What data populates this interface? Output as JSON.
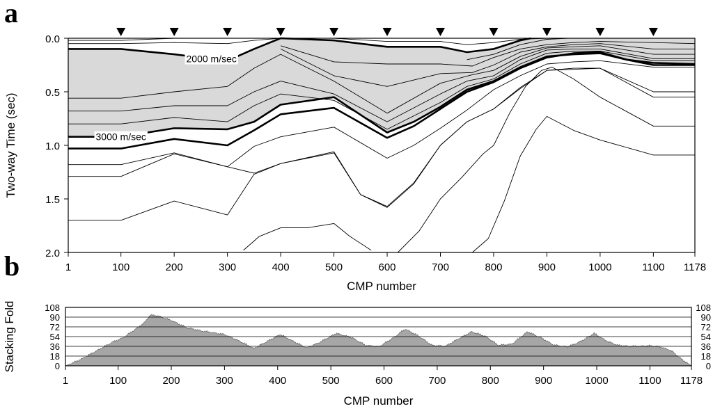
{
  "panels": [
    {
      "id": "a",
      "label": "a"
    },
    {
      "id": "b",
      "label": "b"
    }
  ],
  "chart_data": [
    {
      "panel": "a",
      "type": "line",
      "ylabel": "Two-way  Time (sec)",
      "xlabel": "CMP number",
      "xlim": [
        1,
        1178
      ],
      "ylim": [
        0.0,
        2.0
      ],
      "y_inverted": true,
      "xticks": [
        1,
        100,
        200,
        300,
        400,
        500,
        600,
        700,
        800,
        900,
        1000,
        1100,
        1178
      ],
      "yticks": [
        0.0,
        0.5,
        1.0,
        1.5,
        2.0
      ],
      "ytick_labels": [
        "0.0",
        "0.5",
        "1.0",
        "1.5",
        "2.0"
      ],
      "markers": {
        "shape": "inverted-triangle",
        "x": [
          100,
          200,
          300,
          400,
          500,
          600,
          700,
          800,
          900,
          1000,
          1100
        ]
      },
      "shaded_region": {
        "between": [
          "2000 m/sec",
          "3000 m/sec"
        ],
        "color": "#d9d9d9"
      },
      "contours": [
        {
          "label": "",
          "bold": false,
          "x": [
            1,
            100,
            200,
            300,
            400
          ],
          "y": [
            0.02,
            0.02,
            0.0,
            0.0,
            0.0
          ]
        },
        {
          "label": "",
          "bold": false,
          "x": [
            1,
            100,
            200,
            300,
            350,
            400
          ],
          "y": [
            0.05,
            0.05,
            0.04,
            0.05,
            0.02,
            0.0
          ]
        },
        {
          "label": "",
          "bold": false,
          "x": [
            500,
            600,
            700,
            750,
            800,
            850,
            900,
            950
          ],
          "y": [
            0.0,
            0.03,
            0.03,
            0.06,
            0.04,
            0.01,
            0.0,
            0.0
          ]
        },
        {
          "label": "2000 m/sec",
          "bold": true,
          "x": [
            1,
            100,
            200,
            300,
            350,
            400,
            500,
            600,
            700,
            750,
            800,
            850,
            870
          ],
          "y": [
            0.1,
            0.1,
            0.15,
            0.21,
            0.1,
            0.0,
            0.02,
            0.08,
            0.08,
            0.13,
            0.1,
            0.02,
            0.0
          ]
        },
        {
          "label": "",
          "bold": false,
          "x": [
            750,
            800,
            850,
            900,
            940
          ],
          "y": [
            0.2,
            0.15,
            0.06,
            0.01,
            0.0
          ]
        },
        {
          "label": "",
          "bold": false,
          "x": [
            400,
            500,
            600,
            700,
            760,
            800,
            850,
            900,
            950,
            1000,
            1100,
            1178
          ],
          "y": [
            0.07,
            0.22,
            0.24,
            0.24,
            0.26,
            0.18,
            0.1,
            0.06,
            0.04,
            0.03,
            0.04,
            0.05
          ]
        },
        {
          "label": "",
          "bold": false,
          "x": [
            400,
            500,
            600,
            700,
            760,
            800,
            850,
            900,
            950,
            1000,
            1100,
            1178
          ],
          "y": [
            0.1,
            0.35,
            0.45,
            0.33,
            0.32,
            0.25,
            0.13,
            0.08,
            0.06,
            0.05,
            0.1,
            0.1
          ]
        },
        {
          "label": "",
          "bold": false,
          "x": [
            1,
            100,
            200,
            300,
            350,
            400,
            500,
            600,
            700,
            760,
            800,
            850,
            900,
            950,
            1000,
            1100,
            1178
          ],
          "y": [
            0.56,
            0.56,
            0.5,
            0.45,
            0.28,
            0.15,
            0.4,
            0.7,
            0.42,
            0.34,
            0.3,
            0.17,
            0.09,
            0.08,
            0.07,
            0.15,
            0.15
          ]
        },
        {
          "label": "",
          "bold": false,
          "x": [
            1,
            100,
            200,
            300,
            350,
            400,
            500,
            600,
            700,
            750,
            800,
            850,
            900,
            950,
            1000,
            1100,
            1178
          ],
          "y": [
            0.68,
            0.68,
            0.63,
            0.63,
            0.5,
            0.4,
            0.52,
            0.78,
            0.52,
            0.4,
            0.35,
            0.2,
            0.11,
            0.1,
            0.1,
            0.19,
            0.19
          ]
        },
        {
          "label": "",
          "bold": false,
          "x": [
            1,
            100,
            200,
            300,
            350,
            400,
            500,
            600,
            700,
            750,
            800,
            850,
            900,
            950,
            1000,
            1100,
            1178
          ],
          "y": [
            0.8,
            0.8,
            0.74,
            0.78,
            0.63,
            0.52,
            0.58,
            0.85,
            0.6,
            0.45,
            0.38,
            0.24,
            0.14,
            0.12,
            0.12,
            0.21,
            0.21
          ]
        },
        {
          "label": "3000 m/sec",
          "bold": true,
          "x": [
            1,
            100,
            200,
            300,
            350,
            400,
            500,
            600,
            650,
            700,
            750,
            800,
            850,
            900,
            950,
            1000,
            1050,
            1100,
            1178
          ],
          "y": [
            0.92,
            0.92,
            0.84,
            0.85,
            0.78,
            0.62,
            0.55,
            0.88,
            0.78,
            0.64,
            0.48,
            0.4,
            0.27,
            0.17,
            0.15,
            0.14,
            0.2,
            0.23,
            0.24
          ]
        },
        {
          "label": "",
          "bold": true,
          "x": [
            1,
            100,
            200,
            300,
            350,
            400,
            500,
            600,
            650,
            700,
            750,
            800,
            850,
            900,
            950,
            1000,
            1050,
            1100,
            1178
          ],
          "y": [
            1.03,
            1.03,
            0.94,
            1.0,
            0.86,
            0.71,
            0.65,
            0.93,
            0.82,
            0.66,
            0.5,
            0.41,
            0.28,
            0.18,
            0.14,
            0.13,
            0.2,
            0.25,
            0.25
          ]
        },
        {
          "label": "",
          "bold": false,
          "x": [
            1,
            100,
            200,
            300,
            350,
            400,
            500,
            600,
            650,
            700,
            750,
            800,
            850,
            900,
            950,
            1000,
            1100,
            1178
          ],
          "y": [
            1.18,
            1.18,
            1.07,
            1.2,
            1.01,
            0.92,
            0.83,
            1.12,
            1.0,
            0.84,
            0.67,
            0.48,
            0.35,
            0.24,
            0.22,
            0.21,
            0.27,
            0.27
          ]
        },
        {
          "label": "",
          "bold": false,
          "x": [
            1,
            100,
            200,
            300,
            350,
            400,
            500,
            550,
            600,
            650,
            700,
            750,
            800,
            850,
            900,
            950,
            1000,
            1100,
            1178
          ],
          "y": [
            1.29,
            1.29,
            1.08,
            1.2,
            1.26,
            1.17,
            1.07,
            1.46,
            1.57,
            1.35,
            1.0,
            0.78,
            0.66,
            0.46,
            0.3,
            0.28,
            0.28,
            0.5,
            0.5
          ]
        },
        {
          "label": "",
          "bold": false,
          "x": [
            1,
            100,
            200,
            300,
            350,
            400,
            500,
            550,
            600,
            650,
            700,
            750,
            800,
            850,
            900,
            950,
            1000,
            1100,
            1178
          ],
          "y": [
            1.7,
            1.7,
            1.52,
            1.65,
            1.27,
            1.17,
            1.06,
            1.46,
            1.58,
            1.36,
            1.0,
            0.78,
            0.66,
            0.47,
            0.3,
            0.29,
            0.28,
            0.55,
            0.55
          ]
        },
        {
          "label": "",
          "bold": false,
          "x": [
            620,
            660,
            700,
            740,
            780,
            800,
            830,
            860,
            890,
            910,
            950,
            1000,
            1100,
            1178
          ],
          "y": [
            2.0,
            1.8,
            1.5,
            1.3,
            1.08,
            1.0,
            0.7,
            0.45,
            0.3,
            0.27,
            0.38,
            0.55,
            0.82,
            0.82
          ]
        },
        {
          "label": "",
          "bold": false,
          "x": [
            760,
            790,
            820,
            850,
            880,
            900,
            950,
            1000,
            1100,
            1178
          ],
          "y": [
            2.0,
            1.87,
            1.52,
            1.1,
            0.85,
            0.73,
            0.86,
            0.95,
            1.09,
            1.09
          ]
        },
        {
          "label": "",
          "bold": false,
          "x": [
            330,
            360,
            400,
            450,
            500,
            530,
            570
          ],
          "y": [
            1.98,
            1.85,
            1.77,
            1.77,
            1.73,
            1.85,
            1.98
          ]
        }
      ]
    },
    {
      "panel": "b",
      "type": "area",
      "ylabel": "Stacking Fold",
      "xlabel": "CMP number",
      "xlim": [
        1,
        1178
      ],
      "ylim": [
        0,
        108
      ],
      "xticks": [
        1,
        100,
        200,
        300,
        400,
        500,
        600,
        700,
        800,
        900,
        1000,
        1100,
        1178
      ],
      "yticks": [
        0,
        18,
        36,
        54,
        72,
        90,
        108
      ],
      "grid": "horizontal",
      "color": "#a6a6a6",
      "x": [
        1,
        30,
        60,
        90,
        110,
        130,
        150,
        160,
        175,
        200,
        230,
        260,
        300,
        330,
        355,
        380,
        405,
        430,
        455,
        480,
        510,
        540,
        565,
        590,
        615,
        640,
        665,
        690,
        715,
        740,
        765,
        790,
        815,
        840,
        870,
        895,
        920,
        945,
        970,
        995,
        1020,
        1040,
        1060,
        1080,
        1100,
        1120,
        1140,
        1160,
        1178
      ],
      "values": [
        0,
        12,
        28,
        44,
        52,
        66,
        80,
        94,
        92,
        84,
        70,
        64,
        58,
        45,
        32,
        45,
        58,
        45,
        33,
        44,
        60,
        52,
        38,
        35,
        50,
        68,
        55,
        38,
        36,
        50,
        63,
        55,
        38,
        40,
        63,
        52,
        38,
        35,
        45,
        60,
        45,
        38,
        36,
        36,
        37,
        35,
        28,
        12,
        0
      ]
    }
  ]
}
